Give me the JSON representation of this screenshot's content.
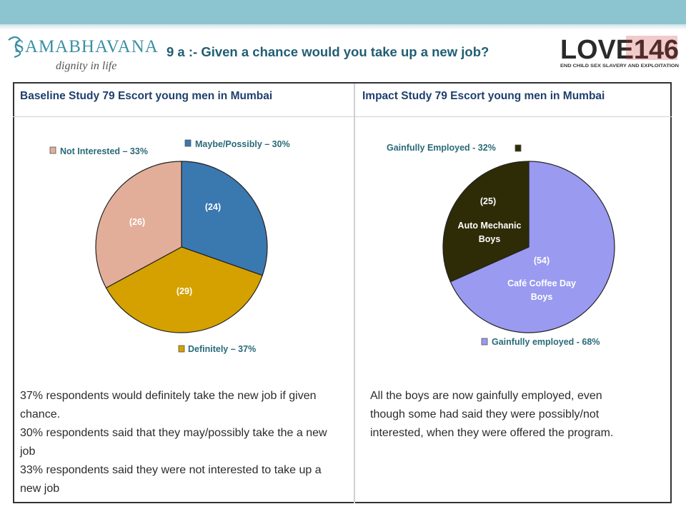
{
  "header": {
    "left_logo_text": "SAMABHAVANA",
    "left_logo_tagline": "dignity in life",
    "right_logo_text": "LOVE146",
    "right_logo_tagline": "END CHILD SEX SLAVERY AND EXPLOITATION",
    "title": "9 a :- Given a chance would you take up a new job?"
  },
  "columns": {
    "left_heading": "Baseline Study 79 Escort young men in Mumbai",
    "right_heading": "Impact Study 79 Escort young men in Mumbai"
  },
  "chart_data": [
    {
      "type": "pie",
      "title": "Baseline Study 79 Escort young men in Mumbai",
      "categories": [
        "Maybe/Possibly",
        "Definitely",
        "Not Interested"
      ],
      "values": [
        24,
        29,
        26
      ],
      "percent_labels": [
        "Maybe/Possibly – 30%",
        "Definitely – 37%",
        "Not Interested – 33%"
      ],
      "count_labels": [
        "(24)",
        "(29)",
        "(26)"
      ],
      "slice_names": [
        "",
        "",
        ""
      ],
      "colors": [
        "#3a78b0",
        "#d4a100",
        "#e2ae9a"
      ],
      "start_angle_deg": 0,
      "direction": "clockwise"
    },
    {
      "type": "pie",
      "title": "Impact Study 79 Escort young men in Mumbai",
      "categories": [
        "Café Coffee Day Boys",
        "Auto Mechanic Boys"
      ],
      "values": [
        54,
        25
      ],
      "percent_labels": [
        "Gainfully employed - 68%",
        "Gainfully Employed - 32%"
      ],
      "count_labels": [
        "(54)",
        "(25)"
      ],
      "slice_names": [
        "Café Coffee Day|Boys",
        "Auto Mechanic|Boys"
      ],
      "colors": [
        "#9a9af0",
        "#2e2c06"
      ],
      "start_angle_deg": 0,
      "direction": "clockwise"
    }
  ],
  "left_text": [
    "37% respondents would definitely take the new job if given chance.",
    "30% respondents said that they may/possibly take the a new job",
    "33% respondents said they were not interested to take up a new job"
  ],
  "right_text": [
    "All the boys are now gainfully employed, even though some had said they were possibly/not interested, when they were offered the program."
  ]
}
